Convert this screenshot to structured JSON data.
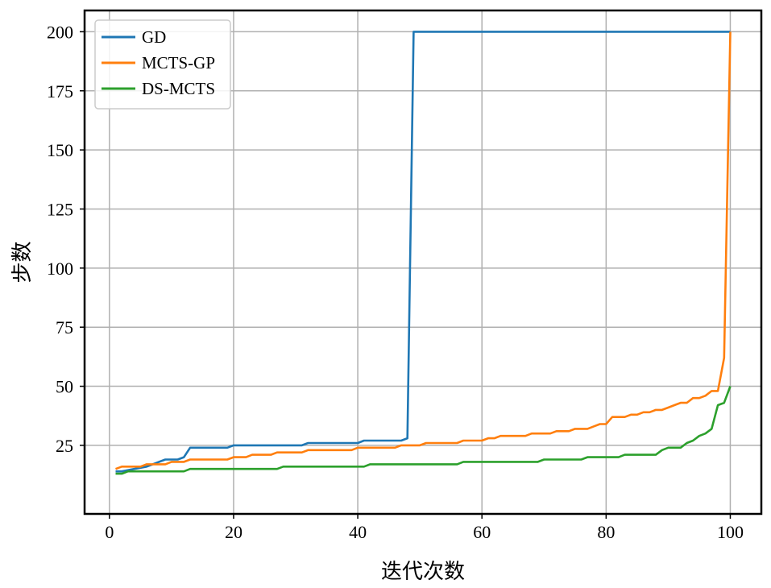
{
  "chart_data": {
    "type": "line",
    "title": "",
    "xlabel": "迭代次数",
    "ylabel": "步数",
    "xlim": [
      -4,
      105
    ],
    "ylim": [
      -4,
      209
    ],
    "xticks": [
      0,
      20,
      40,
      60,
      80,
      100
    ],
    "yticks": [
      25,
      50,
      75,
      100,
      125,
      150,
      175,
      200
    ],
    "xtick_labels": [
      "0",
      "20",
      "40",
      "60",
      "80",
      "100"
    ],
    "ytick_labels": [
      "25",
      "50",
      "75",
      "100",
      "125",
      "150",
      "175",
      "200"
    ],
    "grid": true,
    "legend_position": "top-left",
    "series": [
      {
        "name": "GD",
        "color": "#1f77b4",
        "points": [
          [
            1,
            14
          ],
          [
            2,
            14
          ],
          [
            4,
            15
          ],
          [
            6,
            16
          ],
          [
            8,
            18
          ],
          [
            9,
            19
          ],
          [
            11,
            19
          ],
          [
            12,
            20
          ],
          [
            13,
            24
          ],
          [
            19,
            24
          ],
          [
            20,
            25
          ],
          [
            31,
            25
          ],
          [
            32,
            26
          ],
          [
            40,
            26
          ],
          [
            41,
            27
          ],
          [
            47,
            27
          ],
          [
            48,
            28
          ],
          [
            49,
            200
          ],
          [
            100,
            200
          ]
        ]
      },
      {
        "name": "MCTS-GP",
        "color": "#ff7f0e",
        "points": [
          [
            1,
            15
          ],
          [
            2,
            16
          ],
          [
            5,
            16
          ],
          [
            6,
            17
          ],
          [
            8,
            17
          ],
          [
            9,
            17
          ],
          [
            10,
            18
          ],
          [
            12,
            18
          ],
          [
            13,
            19
          ],
          [
            19,
            19
          ],
          [
            20,
            20
          ],
          [
            22,
            20
          ],
          [
            23,
            21
          ],
          [
            26,
            21
          ],
          [
            27,
            22
          ],
          [
            31,
            22
          ],
          [
            32,
            23
          ],
          [
            39,
            23
          ],
          [
            40,
            24
          ],
          [
            46,
            24
          ],
          [
            47,
            25
          ],
          [
            50,
            25
          ],
          [
            51,
            26
          ],
          [
            56,
            26
          ],
          [
            57,
            27
          ],
          [
            60,
            27
          ],
          [
            61,
            28
          ],
          [
            62,
            28
          ],
          [
            63,
            29
          ],
          [
            67,
            29
          ],
          [
            68,
            30
          ],
          [
            71,
            30
          ],
          [
            72,
            31
          ],
          [
            74,
            31
          ],
          [
            75,
            32
          ],
          [
            77,
            32
          ],
          [
            78,
            33
          ],
          [
            79,
            34
          ],
          [
            80,
            34
          ],
          [
            81,
            37
          ],
          [
            83,
            37
          ],
          [
            84,
            38
          ],
          [
            85,
            38
          ],
          [
            86,
            39
          ],
          [
            87,
            39
          ],
          [
            88,
            40
          ],
          [
            89,
            40
          ],
          [
            90,
            41
          ],
          [
            91,
            42
          ],
          [
            92,
            43
          ],
          [
            93,
            43
          ],
          [
            94,
            45
          ],
          [
            95,
            45
          ],
          [
            96,
            46
          ],
          [
            97,
            48
          ],
          [
            98,
            48
          ],
          [
            99,
            62
          ],
          [
            100,
            200
          ]
        ]
      },
      {
        "name": "DS-MCTS",
        "color": "#2ca02c",
        "points": [
          [
            1,
            13
          ],
          [
            2,
            13
          ],
          [
            3,
            14
          ],
          [
            12,
            14
          ],
          [
            13,
            15
          ],
          [
            27,
            15
          ],
          [
            28,
            16
          ],
          [
            41,
            16
          ],
          [
            42,
            17
          ],
          [
            56,
            17
          ],
          [
            57,
            18
          ],
          [
            69,
            18
          ],
          [
            70,
            19
          ],
          [
            76,
            19
          ],
          [
            77,
            20
          ],
          [
            82,
            20
          ],
          [
            83,
            21
          ],
          [
            88,
            21
          ],
          [
            89,
            23
          ],
          [
            90,
            24
          ],
          [
            92,
            24
          ],
          [
            93,
            26
          ],
          [
            94,
            27
          ],
          [
            95,
            29
          ],
          [
            96,
            30
          ],
          [
            97,
            32
          ],
          [
            98,
            42
          ],
          [
            99,
            43
          ],
          [
            100,
            50
          ]
        ]
      }
    ]
  }
}
